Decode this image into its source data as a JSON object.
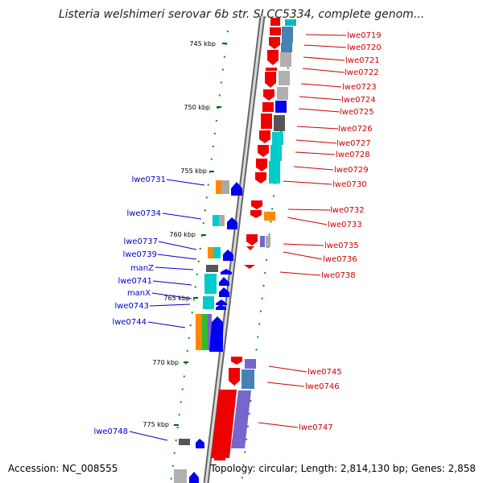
{
  "title": "Listeria welshimeri serovar 6b str. SLCC5334, complete genom...",
  "footer": {
    "accession": "Accession: NC_008555",
    "summary": "Topology: circular; Length: 2,814,130 bp; Genes: 2,858"
  },
  "scale_labels": [
    "745 kbp",
    "750 kbp",
    "755 kbp",
    "760 kbp",
    "765 kbp",
    "770 kbp",
    "775 kbp"
  ],
  "right_genes": [
    "lwe0719",
    "lwe0720",
    "lwe0721",
    "lwe0722",
    "lwe0723",
    "lwe0724",
    "lwe0725",
    "lwe0726",
    "lwe0727",
    "lwe0728",
    "lwe0729",
    "lwe0730",
    "lwe0732",
    "lwe0733",
    "lwe0735",
    "lwe0736",
    "lwe0738",
    "lwe0745",
    "lwe0746",
    "lwe0747"
  ],
  "left_genes": [
    "lwe0731",
    "lwe0734",
    "lwe0737",
    "lwe0739",
    "manZ",
    "lwe0741",
    "manX",
    "lwe0743",
    "lwe0744",
    "lwe0748"
  ],
  "colors": {
    "forward_strand": "#ee0000",
    "reverse_strand": "#0000ee",
    "label_forward": "#cc0000",
    "label_reverse": "#0000cc",
    "backbone": "#888888",
    "cog_cyan": "#00cccc",
    "cog_orange": "#ff8800",
    "cog_steel": "#4682b4",
    "cog_purple": "#7766cc",
    "cog_green": "#33bb33",
    "cog_gray": "#aaaaaa"
  }
}
